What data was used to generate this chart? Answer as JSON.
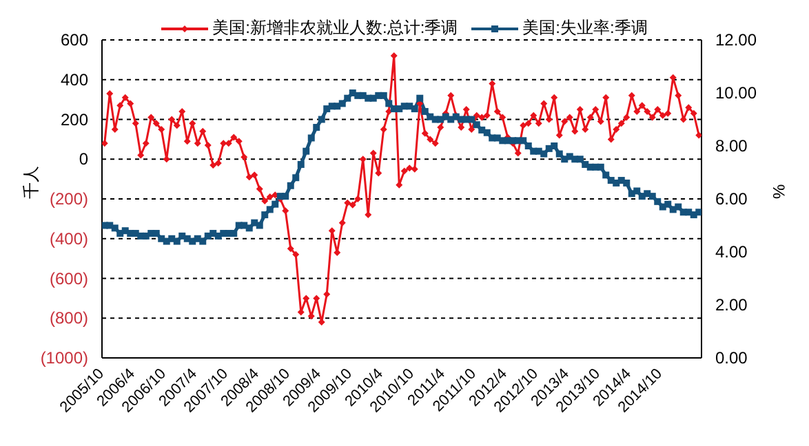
{
  "chart_data": {
    "type": "line",
    "categories": [
      "2005/10",
      null,
      null,
      null,
      null,
      null,
      "2006/4",
      null,
      null,
      null,
      null,
      null,
      "2006/10",
      null,
      null,
      null,
      null,
      null,
      "2007/4",
      null,
      null,
      null,
      null,
      null,
      "2007/10",
      null,
      null,
      null,
      null,
      null,
      "2008/4",
      null,
      null,
      null,
      null,
      null,
      "2008/10",
      null,
      null,
      null,
      null,
      null,
      "2009/4",
      null,
      null,
      null,
      null,
      null,
      "2009/10",
      null,
      null,
      null,
      null,
      null,
      "2010/4",
      null,
      null,
      null,
      null,
      null,
      "2010/10",
      null,
      null,
      null,
      null,
      null,
      "2011/4",
      null,
      null,
      null,
      null,
      null,
      "2011/10",
      null,
      null,
      null,
      null,
      null,
      "2012/4",
      null,
      null,
      null,
      null,
      null,
      "2012/10",
      null,
      null,
      null,
      null,
      null,
      "2013/4",
      null,
      null,
      null,
      null,
      null,
      "2013/10",
      null,
      null,
      null,
      null,
      null,
      "2014/4",
      null,
      null,
      null,
      null,
      null,
      "2014/10",
      null,
      null,
      null,
      null,
      null,
      null,
      null
    ],
    "series": [
      {
        "name": "美国:新增非农就业人数:总计:季调",
        "color": "#e8141c",
        "marker": "diamond",
        "values": [
          80,
          330,
          150,
          270,
          310,
          280,
          180,
          20,
          80,
          210,
          180,
          150,
          0,
          200,
          170,
          240,
          90,
          180,
          80,
          140,
          70,
          -30,
          -20,
          80,
          80,
          110,
          90,
          10,
          -90,
          -80,
          -150,
          -210,
          -190,
          -180,
          -200,
          -260,
          -450,
          -480,
          -770,
          -700,
          -790,
          -700,
          -820,
          -680,
          -360,
          -470,
          -320,
          -220,
          -230,
          -200,
          0,
          -280,
          30,
          -70,
          150,
          240,
          520,
          -130,
          -60,
          -45,
          -50,
          280,
          130,
          100,
          80,
          160,
          230,
          320,
          220,
          160,
          250,
          150,
          220,
          210,
          220,
          380,
          240,
          210,
          110,
          80,
          30,
          170,
          180,
          220,
          180,
          280,
          200,
          310,
          120,
          190,
          210,
          140,
          250,
          150,
          210,
          250,
          190,
          310,
          100,
          150,
          180,
          210,
          320,
          240,
          270,
          240,
          210,
          250,
          220,
          230,
          410,
          320,
          200,
          260,
          230,
          120
        ]
      },
      {
        "name": "美国:失业率:季调",
        "color": "#15527c",
        "marker": "square",
        "axis": "y2",
        "values": [
          5.0,
          5.0,
          4.9,
          4.7,
          4.8,
          4.7,
          4.7,
          4.6,
          4.6,
          4.7,
          4.7,
          4.5,
          4.4,
          4.5,
          4.4,
          4.6,
          4.5,
          4.4,
          4.5,
          4.4,
          4.6,
          4.7,
          4.6,
          4.7,
          4.7,
          4.7,
          5.0,
          5.0,
          4.9,
          5.1,
          5.0,
          5.4,
          5.6,
          5.8,
          6.1,
          6.1,
          6.5,
          6.8,
          7.3,
          7.8,
          8.3,
          8.7,
          9.0,
          9.4,
          9.5,
          9.5,
          9.6,
          9.8,
          10.0,
          9.9,
          9.9,
          9.8,
          9.8,
          9.9,
          9.9,
          9.6,
          9.4,
          9.4,
          9.5,
          9.5,
          9.4,
          9.8,
          9.3,
          9.1,
          9.0,
          9.0,
          9.1,
          9.0,
          9.1,
          9.0,
          9.0,
          9.0,
          8.8,
          8.6,
          8.5,
          8.3,
          8.3,
          8.2,
          8.2,
          8.2,
          8.2,
          8.2,
          8.0,
          7.8,
          7.8,
          7.7,
          7.9,
          8.0,
          7.7,
          7.5,
          7.6,
          7.5,
          7.5,
          7.3,
          7.2,
          7.2,
          7.2,
          6.9,
          6.7,
          6.6,
          6.7,
          6.6,
          6.2,
          6.3,
          6.1,
          6.2,
          6.1,
          5.9,
          5.7,
          5.8,
          5.6,
          5.7,
          5.5,
          5.5,
          5.4,
          5.5
        ]
      }
    ],
    "ylabel": "千人",
    "y2label": "%",
    "ylim": [
      -1000,
      600
    ],
    "yticks": [
      600,
      400,
      200,
      0,
      {
        "value": -200,
        "label": "(200)"
      },
      {
        "value": -400,
        "label": "(400)"
      },
      {
        "value": -600,
        "label": "(600)"
      },
      {
        "value": -800,
        "label": "(800)"
      },
      {
        "value": -1000,
        "label": "(1000)"
      }
    ],
    "y2lim": [
      0,
      12
    ],
    "y2ticks": [
      {
        "value": 0,
        "label": "0.00"
      },
      {
        "value": 2,
        "label": "2.00"
      },
      {
        "value": 4,
        "label": "4.00"
      },
      {
        "value": 6,
        "label": "6.00"
      },
      {
        "value": 8,
        "label": "8.00"
      },
      {
        "value": 10,
        "label": "10.00"
      },
      {
        "value": 12,
        "label": "12.00"
      }
    ],
    "grid": "y",
    "legend": "top",
    "line_style": "solid"
  }
}
